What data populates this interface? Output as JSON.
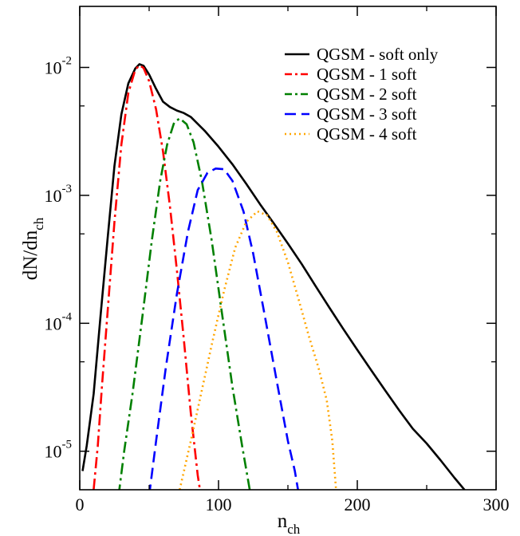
{
  "chart_data": {
    "type": "line",
    "title": "",
    "xlabel": {
      "main": "n",
      "sub": "ch"
    },
    "ylabel": {
      "main": "dN/dn",
      "sub": "ch"
    },
    "xlim": [
      0,
      300
    ],
    "ylim": [
      5e-06,
      0.03
    ],
    "yscale": "log",
    "grid": false,
    "legend_position": "top-right",
    "x_ticks": [
      {
        "value": 0,
        "label": "0"
      },
      {
        "value": 100,
        "label": "100"
      },
      {
        "value": 200,
        "label": "200"
      },
      {
        "value": 300,
        "label": "300"
      }
    ],
    "y_ticks": [
      {
        "value": 1e-05,
        "base": "10",
        "exp": "-5"
      },
      {
        "value": 0.0001,
        "base": "10",
        "exp": "-4"
      },
      {
        "value": 0.001,
        "base": "10",
        "exp": "-3"
      },
      {
        "value": 0.01,
        "base": "10",
        "exp": "-2"
      }
    ],
    "series": [
      {
        "name": "QGSM - soft only",
        "color": "#000000",
        "dash": "solid",
        "points": [
          [
            2,
            7e-06
          ],
          [
            5,
            1.1e-05
          ],
          [
            10,
            2.8e-05
          ],
          [
            15,
            0.000115
          ],
          [
            20,
            0.00045
          ],
          [
            25,
            0.0017
          ],
          [
            30,
            0.0043
          ],
          [
            35,
            0.0075
          ],
          [
            40,
            0.0098
          ],
          [
            43,
            0.0106
          ],
          [
            46,
            0.0103
          ],
          [
            50,
            0.0088
          ],
          [
            55,
            0.0068
          ],
          [
            60,
            0.0054
          ],
          [
            65,
            0.0049
          ],
          [
            70,
            0.0046
          ],
          [
            75,
            0.0044
          ],
          [
            80,
            0.0041
          ],
          [
            90,
            0.0032
          ],
          [
            100,
            0.0024
          ],
          [
            110,
            0.00175
          ],
          [
            120,
            0.00123
          ],
          [
            130,
            0.00085
          ],
          [
            140,
            0.0006
          ],
          [
            150,
            0.00042
          ],
          [
            160,
            0.00029
          ],
          [
            170,
            0.000195
          ],
          [
            180,
            0.000132
          ],
          [
            190,
            9e-05
          ],
          [
            200,
            6.2e-05
          ],
          [
            210,
            4.3e-05
          ],
          [
            220,
            3e-05
          ],
          [
            230,
            2.1e-05
          ],
          [
            240,
            1.5e-05
          ],
          [
            250,
            1.15e-05
          ],
          [
            260,
            8.5e-06
          ],
          [
            270,
            6.2e-06
          ],
          [
            280,
            4.6e-06
          ]
        ]
      },
      {
        "name": "QGSM - 1 soft",
        "color": "#ff0000",
        "dash": "dashdot",
        "points": [
          [
            10,
            5e-06
          ],
          [
            13,
            1.1e-05
          ],
          [
            16,
            3.2e-05
          ],
          [
            20,
            0.00012
          ],
          [
            25,
            0.00062
          ],
          [
            30,
            0.0025
          ],
          [
            35,
            0.0063
          ],
          [
            40,
            0.0096
          ],
          [
            43,
            0.0104
          ],
          [
            46,
            0.0099
          ],
          [
            50,
            0.0078
          ],
          [
            55,
            0.0047
          ],
          [
            60,
            0.0022
          ],
          [
            65,
            0.00082
          ],
          [
            70,
            0.00026
          ],
          [
            75,
            7.5e-05
          ],
          [
            80,
            2e-05
          ],
          [
            85,
            6.5e-06
          ],
          [
            88,
            4e-06
          ]
        ]
      },
      {
        "name": "QGSM - 2 soft",
        "color": "#008000",
        "dash": "dashdot",
        "points": [
          [
            28,
            4.5e-06
          ],
          [
            32,
            1e-05
          ],
          [
            38,
            2.8e-05
          ],
          [
            45,
            0.00011
          ],
          [
            52,
            0.00045
          ],
          [
            58,
            0.0013
          ],
          [
            63,
            0.0025
          ],
          [
            68,
            0.0037
          ],
          [
            72,
            0.004
          ],
          [
            77,
            0.0036
          ],
          [
            82,
            0.0026
          ],
          [
            88,
            0.0013
          ],
          [
            95,
            0.00045
          ],
          [
            102,
            0.00013
          ],
          [
            110,
            3.2e-05
          ],
          [
            117,
            1.1e-05
          ],
          [
            124,
            4e-06
          ]
        ]
      },
      {
        "name": "QGSM - 3 soft",
        "color": "#0000ff",
        "dash": "dashed",
        "points": [
          [
            50,
            4.5e-06
          ],
          [
            55,
            1.2e-05
          ],
          [
            62,
            4.5e-05
          ],
          [
            70,
            0.00017
          ],
          [
            78,
            0.00052
          ],
          [
            85,
            0.0011
          ],
          [
            92,
            0.0015
          ],
          [
            98,
            0.00162
          ],
          [
            104,
            0.0016
          ],
          [
            110,
            0.0013
          ],
          [
            118,
            0.00075
          ],
          [
            125,
            0.00035
          ],
          [
            133,
            0.00012
          ],
          [
            142,
            3.5e-05
          ],
          [
            150,
            1.2e-05
          ],
          [
            155,
            7e-06
          ],
          [
            158,
            4.5e-06
          ]
        ]
      },
      {
        "name": "QGSM - 4 soft",
        "color": "#ffa500",
        "dash": "dotted",
        "points": [
          [
            72,
            5e-06
          ],
          [
            80,
            1.2e-05
          ],
          [
            88,
            3e-05
          ],
          [
            96,
            7.5e-05
          ],
          [
            104,
            0.00018
          ],
          [
            112,
            0.00039
          ],
          [
            120,
            0.00062
          ],
          [
            128,
            0.00075
          ],
          [
            135,
            0.0007
          ],
          [
            142,
            0.00052
          ],
          [
            150,
            0.0003
          ],
          [
            158,
            0.00015
          ],
          [
            165,
            8e-05
          ],
          [
            172,
            4.5e-05
          ],
          [
            178,
            2.5e-05
          ],
          [
            182,
            1.2e-05
          ],
          [
            185,
            4.5e-06
          ]
        ]
      }
    ]
  }
}
